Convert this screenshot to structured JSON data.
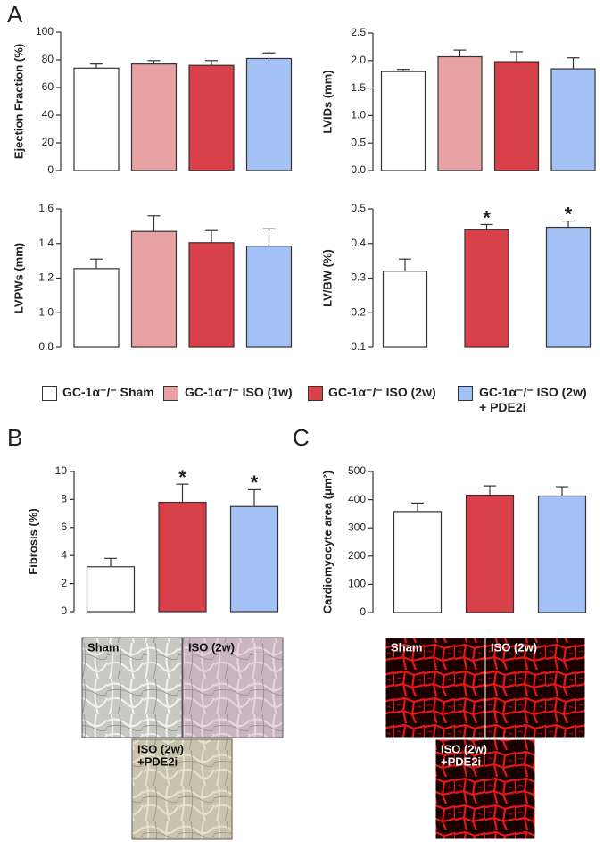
{
  "panels": [
    "A",
    "B",
    "C"
  ],
  "legend": [
    {
      "name": "GC-1α⁻/⁻ Sham",
      "color": "#ffffff"
    },
    {
      "name": "GC-1α⁻/⁻ ISO (1w)",
      "color": "#e9a2a3"
    },
    {
      "name": "GC-1α⁻/⁻ ISO (2w)",
      "color": "#d8414a"
    },
    {
      "name": "GC-1α⁻/⁻ ISO (2w) + PDE2i",
      "color": "#a3c1f5"
    }
  ],
  "chart_data": [
    {
      "type": "bar",
      "ylabel": "Ejection Fraction (%)",
      "ylim": [
        0,
        100
      ],
      "yticks": [
        0,
        20,
        40,
        60,
        80,
        100
      ],
      "values": [
        74,
        77,
        76,
        81
      ],
      "errors": [
        3,
        2.5,
        3.5,
        4
      ],
      "colors": [
        "#ffffff",
        "#e9a2a3",
        "#d8414a",
        "#a3c1f5"
      ]
    },
    {
      "type": "bar",
      "ylabel": "LVIDs (mm)",
      "ylim": [
        0,
        2.5
      ],
      "yticks": [
        {
          "value": 0,
          "label": "0.0"
        },
        0.5,
        {
          "value": 1,
          "label": "1.0"
        },
        1.5,
        {
          "value": 2,
          "label": "2.0"
        },
        2.5
      ],
      "values": [
        1.8,
        2.07,
        1.98,
        1.85
      ],
      "errors": [
        0.04,
        0.12,
        0.18,
        0.2
      ],
      "colors": [
        "#ffffff",
        "#e9a2a3",
        "#d8414a",
        "#a3c1f5"
      ]
    },
    {
      "type": "bar",
      "ylabel": "LVPWs (mm)",
      "ylim": [
        0.8,
        1.6
      ],
      "yticks": [
        0.8,
        {
          "value": 1,
          "label": "1.0"
        },
        1.2,
        1.4,
        1.6
      ],
      "values": [
        1.255,
        1.47,
        1.405,
        1.385
      ],
      "errors": [
        0.055,
        0.09,
        0.07,
        0.1
      ],
      "colors": [
        "#ffffff",
        "#e9a2a3",
        "#d8414a",
        "#a3c1f5"
      ]
    },
    {
      "type": "bar",
      "ylabel": "LV/BW (%)",
      "ylim": [
        0.1,
        0.5
      ],
      "yticks": [
        0.1,
        0.2,
        0.3,
        0.4,
        0.5
      ],
      "values": [
        0.32,
        0.44,
        0.447
      ],
      "errors": [
        0.035,
        0.015,
        0.018
      ],
      "colors": [
        "#ffffff",
        "#d8414a",
        "#a3c1f5"
      ],
      "annotations": [
        null,
        "*",
        "*"
      ]
    },
    {
      "type": "bar",
      "ylabel": "Fibrosis (%)",
      "ylim": [
        0,
        10
      ],
      "yticks": [
        0,
        2,
        4,
        6,
        8,
        10
      ],
      "values": [
        3.2,
        7.8,
        7.5
      ],
      "errors": [
        0.6,
        1.3,
        1.2
      ],
      "colors": [
        "#ffffff",
        "#d8414a",
        "#a3c1f5"
      ],
      "annotations": [
        null,
        "*",
        "*"
      ]
    },
    {
      "type": "bar",
      "ylabel": "Cardiomyocyte area (μm²)",
      "ylim": [
        0,
        500
      ],
      "yticks": [
        0,
        100,
        200,
        300,
        400,
        500
      ],
      "values": [
        358,
        416,
        413
      ],
      "errors": [
        30,
        33,
        33
      ],
      "colors": [
        "#ffffff",
        "#d8414a",
        "#a3c1f5"
      ]
    }
  ],
  "micrographs": {
    "fibrosis": [
      [
        "Sham"
      ],
      [
        "ISO (2w)"
      ],
      [
        "ISO (2w)",
        "+PDE2i"
      ]
    ],
    "cardiomyocyte": [
      [
        "Sham"
      ],
      [
        "ISO (2w)"
      ],
      [
        "ISO (2w)",
        "+PDE2i"
      ]
    ]
  }
}
